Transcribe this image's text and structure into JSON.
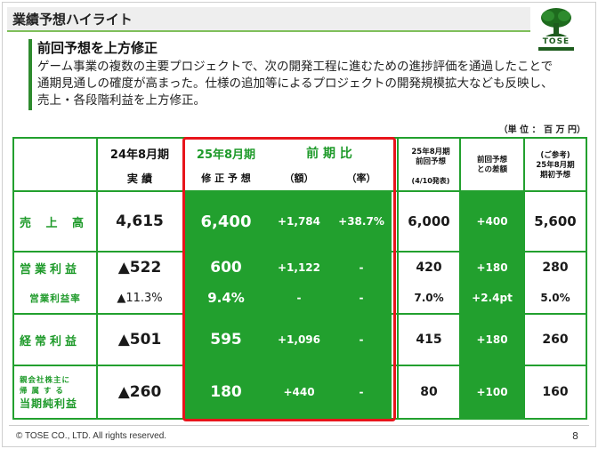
{
  "slide": {
    "title": "業績予想ハイライト",
    "headline": "前回予想を上方修正",
    "body": "ゲーム事業の複数の主要プロジェクトで、次の開発工程に進むための進捗評価を通過したことで通期見通しの確度が高まった。仕様の追加等によるプロジェクトの開発規模拡大なども反映し、売上・各段階利益を上方修正。",
    "unit": "（単 位 ： 百 万 円）",
    "logo_text": "TOSE"
  },
  "table": {
    "headers": {
      "fy24": "24年8月期",
      "fy24_sub": "実 績",
      "fy25": "25年8月期",
      "fy25_sub": "修 正 予 想",
      "yoy": "前 期 比",
      "yoy_amt": "（額）",
      "yoy_pct": "（率）",
      "prev": "25年8月期\n前回予想",
      "prev_sub": "(4/10発表)",
      "diff": "前回予想\nとの差額",
      "ref": "(ご参考)\n25年8月期\n期初予想"
    },
    "rows": {
      "sales": {
        "label": "売 上 高",
        "fy24": "4,615",
        "fy25": "6,400",
        "yoy_amt": "+1,784",
        "yoy_pct": "+38.7%",
        "prev": "6,000",
        "diff": "+400",
        "ref": "5,600"
      },
      "op": {
        "label": "営業利益",
        "fy24": "▲522",
        "fy25": "600",
        "yoy_amt": "+1,122",
        "yoy_pct": "-",
        "prev": "420",
        "diff": "+180",
        "ref": "280"
      },
      "opm": {
        "label": "営業利益率",
        "fy24": "▲11.3%",
        "fy25": "9.4%",
        "yoy_amt": "-",
        "yoy_pct": "-",
        "prev": "7.0%",
        "diff": "+2.4pt",
        "ref": "5.0%"
      },
      "ord": {
        "label": "経常利益",
        "fy24": "▲501",
        "fy25": "595",
        "yoy_amt": "+1,096",
        "yoy_pct": "-",
        "prev": "415",
        "diff": "+180",
        "ref": "260"
      },
      "net": {
        "label_line1": "親会社株主に",
        "label_line2": "帰 属 す る",
        "label_line3": "当期純利益",
        "fy24": "▲260",
        "fy25": "180",
        "yoy_amt": "+440",
        "yoy_pct": "-",
        "prev": "80",
        "diff": "+100",
        "ref": "160"
      }
    }
  },
  "footer": {
    "copyright": "© TOSE CO., LTD. All rights reserved.",
    "page": "8"
  },
  "colors": {
    "green": "#22a02e",
    "red_box": "#e8141b",
    "accent": "#2e8b2e"
  },
  "icons": {
    "logo": "tose-tree-logo"
  }
}
